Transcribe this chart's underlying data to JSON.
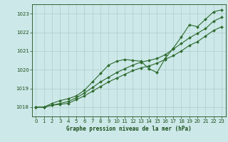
{
  "title": "Graphe pression niveau de la mer (hPa)",
  "x": [
    0,
    1,
    2,
    3,
    4,
    5,
    6,
    7,
    8,
    9,
    10,
    11,
    12,
    13,
    14,
    15,
    16,
    17,
    18,
    19,
    20,
    21,
    22,
    23
  ],
  "line_straight1": [
    1018.0,
    1018.0,
    1018.1,
    1018.15,
    1018.2,
    1018.4,
    1018.6,
    1018.85,
    1019.1,
    1019.35,
    1019.55,
    1019.75,
    1019.95,
    1020.1,
    1020.2,
    1020.35,
    1020.55,
    1020.75,
    1021.0,
    1021.3,
    1021.5,
    1021.8,
    1022.1,
    1022.3
  ],
  "line_straight2": [
    1018.0,
    1018.0,
    1018.1,
    1018.2,
    1018.3,
    1018.5,
    1018.75,
    1019.05,
    1019.35,
    1019.6,
    1019.85,
    1020.05,
    1020.25,
    1020.4,
    1020.5,
    1020.6,
    1020.8,
    1021.1,
    1021.4,
    1021.7,
    1021.95,
    1022.2,
    1022.6,
    1022.8
  ],
  "line_wavy": [
    1018.0,
    1018.0,
    1018.2,
    1018.35,
    1018.45,
    1018.6,
    1018.9,
    1019.35,
    1019.8,
    1020.25,
    1020.45,
    1020.55,
    1020.5,
    1020.45,
    1020.05,
    1019.85,
    1020.6,
    1021.15,
    1021.75,
    1022.4,
    1022.3,
    1022.7,
    1023.1,
    1023.2
  ],
  "bg_color": "#cce8e8",
  "line_color": "#2d6a2d",
  "grid_color": "#b0cece",
  "label_color": "#1a4d1a",
  "ylim_min": 1017.5,
  "ylim_max": 1023.5,
  "yticks": [
    1018,
    1019,
    1020,
    1021,
    1022,
    1023
  ],
  "xticks": [
    0,
    1,
    2,
    3,
    4,
    5,
    6,
    7,
    8,
    9,
    10,
    11,
    12,
    13,
    14,
    15,
    16,
    17,
    18,
    19,
    20,
    21,
    22,
    23
  ],
  "marker": "D",
  "markersize": 2.0,
  "linewidth": 0.8
}
